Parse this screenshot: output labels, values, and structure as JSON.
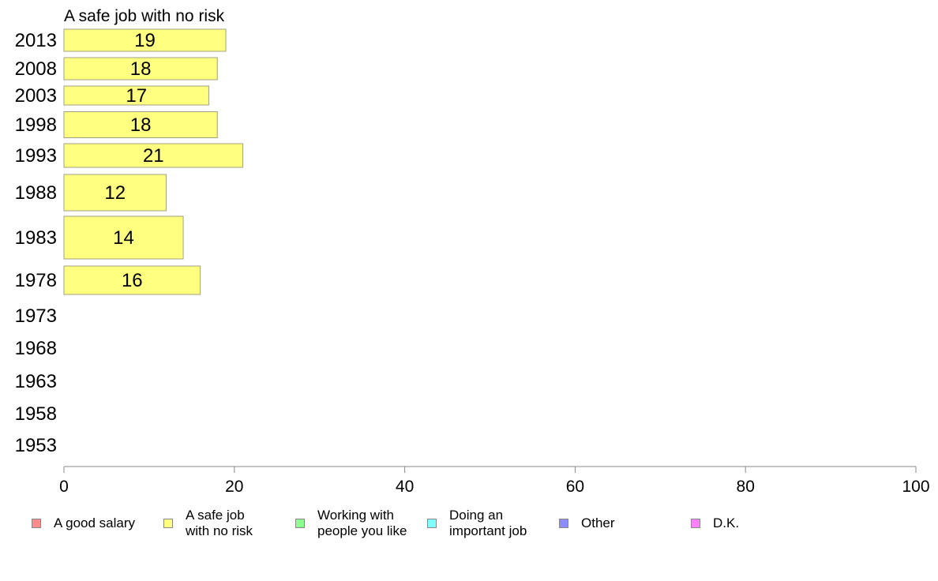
{
  "chart_data": {
    "type": "bar",
    "orientation": "horizontal",
    "title": "A safe job with no risk",
    "categories": [
      "2013",
      "2008",
      "2003",
      "1998",
      "1993",
      "1988",
      "1983",
      "1978",
      "1973",
      "1968",
      "1963",
      "1958",
      "1953"
    ],
    "values": [
      19,
      18,
      17,
      18,
      21,
      12,
      14,
      16,
      null,
      null,
      null,
      null,
      null
    ],
    "data_labels": [
      "19",
      "18",
      "17",
      "18",
      "21",
      "12",
      "14",
      "16",
      "",
      "",
      "",
      "",
      ""
    ],
    "xlim": [
      0,
      100
    ],
    "xticks": [
      "0",
      "20",
      "40",
      "60",
      "80",
      "100"
    ],
    "bar_color": "#ffff80",
    "bar_edge_color": "#a0a080",
    "grid": false,
    "legend_position": "bottom",
    "legend": [
      {
        "label": "A good salary",
        "color": "#ff8c8c"
      },
      {
        "label": "A safe job\nwith no risk",
        "color": "#ffff80"
      },
      {
        "label": "Working with\npeople you like",
        "color": "#8cff8c"
      },
      {
        "label": "Doing an\nimportant job",
        "color": "#80ffff"
      },
      {
        "label": "Other",
        "color": "#8c8cff"
      },
      {
        "label": "D.K.",
        "color": "#ff80ff"
      }
    ]
  }
}
